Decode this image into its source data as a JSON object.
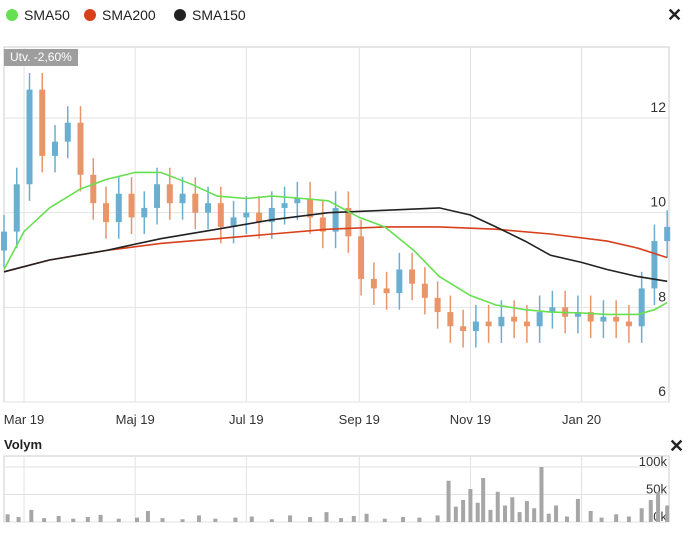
{
  "legend": [
    {
      "label": "SMA50",
      "color": "#66e050"
    },
    {
      "label": "SMA200",
      "color": "#d8401c"
    },
    {
      "label": "SMA150",
      "color": "#222222"
    }
  ],
  "close_symbol": "✕",
  "badge": "Utv. -2,60%",
  "volume_title": "Volym",
  "colors": {
    "up": "#6aaed0",
    "down": "#e8956a",
    "volume": "#a6a6a6",
    "grid": "#e2e2e2"
  },
  "chart_data": [
    {
      "type": "candlestick",
      "ylim": [
        6,
        13.5
      ],
      "yticks": [
        "12",
        "10",
        "8",
        "6"
      ],
      "ytick_values": [
        12,
        10,
        8,
        6
      ],
      "xlim": [
        "2019-02-18",
        "2020-02-18"
      ],
      "xticks": [
        {
          "label": "Mar 19",
          "date": "2019-03-01"
        },
        {
          "label": "Maj 19",
          "date": "2019-05-01"
        },
        {
          "label": "Jul 19",
          "date": "2019-07-01"
        },
        {
          "label": "Sep 19",
          "date": "2019-09-01"
        },
        {
          "label": "Nov 19",
          "date": "2019-11-01"
        },
        {
          "label": "Jan 20",
          "date": "2020-01-01"
        }
      ],
      "close": [
        [
          "2019-02-18",
          9.6
        ],
        [
          "2019-02-25",
          10.6
        ],
        [
          "2019-03-04",
          12.6
        ],
        [
          "2019-03-11",
          11.2
        ],
        [
          "2019-03-18",
          11.5
        ],
        [
          "2019-03-25",
          11.9
        ],
        [
          "2019-04-01",
          10.8
        ],
        [
          "2019-04-08",
          10.2
        ],
        [
          "2019-04-15",
          9.8
        ],
        [
          "2019-04-22",
          10.4
        ],
        [
          "2019-04-29",
          9.9
        ],
        [
          "2019-05-06",
          10.1
        ],
        [
          "2019-05-13",
          10.6
        ],
        [
          "2019-05-20",
          10.2
        ],
        [
          "2019-05-27",
          10.4
        ],
        [
          "2019-06-03",
          10.0
        ],
        [
          "2019-06-10",
          10.2
        ],
        [
          "2019-06-17",
          9.7
        ],
        [
          "2019-06-24",
          9.9
        ],
        [
          "2019-07-01",
          10.0
        ],
        [
          "2019-07-08",
          9.8
        ],
        [
          "2019-07-15",
          10.1
        ],
        [
          "2019-07-22",
          10.2
        ],
        [
          "2019-07-29",
          10.3
        ],
        [
          "2019-08-05",
          9.9
        ],
        [
          "2019-08-12",
          9.6
        ],
        [
          "2019-08-19",
          10.1
        ],
        [
          "2019-08-26",
          9.5
        ],
        [
          "2019-09-02",
          8.6
        ],
        [
          "2019-09-09",
          8.4
        ],
        [
          "2019-09-16",
          8.3
        ],
        [
          "2019-09-23",
          8.8
        ],
        [
          "2019-09-30",
          8.5
        ],
        [
          "2019-10-07",
          8.2
        ],
        [
          "2019-10-14",
          7.9
        ],
        [
          "2019-10-21",
          7.6
        ],
        [
          "2019-10-28",
          7.5
        ],
        [
          "2019-11-04",
          7.7
        ],
        [
          "2019-11-11",
          7.6
        ],
        [
          "2019-11-18",
          7.8
        ],
        [
          "2019-11-25",
          7.7
        ],
        [
          "2019-12-02",
          7.6
        ],
        [
          "2019-12-09",
          7.9
        ],
        [
          "2019-12-16",
          8.0
        ],
        [
          "2019-12-23",
          7.8
        ],
        [
          "2019-12-30",
          7.9
        ],
        [
          "2020-01-06",
          7.7
        ],
        [
          "2020-01-13",
          7.8
        ],
        [
          "2020-01-20",
          7.7
        ],
        [
          "2020-01-27",
          7.6
        ],
        [
          "2020-02-03",
          8.4
        ],
        [
          "2020-02-10",
          9.4
        ],
        [
          "2020-02-17",
          9.7
        ]
      ],
      "sma50": [
        [
          "2019-02-18",
          8.8
        ],
        [
          "2019-03-01",
          9.6
        ],
        [
          "2019-03-15",
          10.1
        ],
        [
          "2019-04-01",
          10.5
        ],
        [
          "2019-04-15",
          10.7
        ],
        [
          "2019-05-01",
          10.85
        ],
        [
          "2019-05-15",
          10.85
        ],
        [
          "2019-06-01",
          10.6
        ],
        [
          "2019-06-15",
          10.35
        ],
        [
          "2019-07-01",
          10.3
        ],
        [
          "2019-07-15",
          10.35
        ],
        [
          "2019-08-01",
          10.3
        ],
        [
          "2019-08-15",
          10.25
        ],
        [
          "2019-09-01",
          9.9
        ],
        [
          "2019-09-15",
          9.7
        ],
        [
          "2019-10-01",
          9.2
        ],
        [
          "2019-10-15",
          8.65
        ],
        [
          "2019-11-01",
          8.25
        ],
        [
          "2019-11-15",
          8.05
        ],
        [
          "2019-12-01",
          7.95
        ],
        [
          "2019-12-15",
          7.9
        ],
        [
          "2020-01-01",
          7.88
        ],
        [
          "2020-01-15",
          7.85
        ],
        [
          "2020-02-01",
          7.85
        ],
        [
          "2020-02-10",
          7.95
        ],
        [
          "2020-02-17",
          8.1
        ]
      ],
      "sma200": [
        [
          "2019-02-18",
          8.75
        ],
        [
          "2019-03-15",
          9.0
        ],
        [
          "2019-04-15",
          9.2
        ],
        [
          "2019-05-15",
          9.35
        ],
        [
          "2019-06-15",
          9.45
        ],
        [
          "2019-07-15",
          9.55
        ],
        [
          "2019-08-15",
          9.65
        ],
        [
          "2019-09-15",
          9.7
        ],
        [
          "2019-10-15",
          9.7
        ],
        [
          "2019-11-15",
          9.65
        ],
        [
          "2019-12-15",
          9.55
        ],
        [
          "2020-01-15",
          9.4
        ],
        [
          "2020-02-01",
          9.25
        ],
        [
          "2020-02-17",
          9.05
        ]
      ],
      "sma150": [
        [
          "2019-02-18",
          8.75
        ],
        [
          "2019-03-15",
          9.0
        ],
        [
          "2019-04-15",
          9.2
        ],
        [
          "2019-05-15",
          9.45
        ],
        [
          "2019-06-15",
          9.65
        ],
        [
          "2019-07-15",
          9.85
        ],
        [
          "2019-08-15",
          10.0
        ],
        [
          "2019-09-15",
          10.05
        ],
        [
          "2019-10-15",
          10.1
        ],
        [
          "2019-11-01",
          9.95
        ],
        [
          "2019-11-15",
          9.7
        ],
        [
          "2019-12-01",
          9.4
        ],
        [
          "2019-12-15",
          9.1
        ],
        [
          "2020-01-01",
          8.95
        ],
        [
          "2020-01-15",
          8.8
        ],
        [
          "2020-02-01",
          8.65
        ],
        [
          "2020-02-17",
          8.55
        ]
      ]
    },
    {
      "type": "bar",
      "title": "Volym",
      "ylim": [
        0,
        120000
      ],
      "yticks": [
        "100k",
        "50k",
        "0k"
      ],
      "ytick_values": [
        100000,
        50000,
        0
      ],
      "values": [
        [
          "2019-02-20",
          14000
        ],
        [
          "2019-02-26",
          9000
        ],
        [
          "2019-03-05",
          22000
        ],
        [
          "2019-03-12",
          7000
        ],
        [
          "2019-03-20",
          11000
        ],
        [
          "2019-03-28",
          6000
        ],
        [
          "2019-04-05",
          9000
        ],
        [
          "2019-04-12",
          13000
        ],
        [
          "2019-04-22",
          6000
        ],
        [
          "2019-05-02",
          8000
        ],
        [
          "2019-05-08",
          20000
        ],
        [
          "2019-05-16",
          7000
        ],
        [
          "2019-05-27",
          5000
        ],
        [
          "2019-06-05",
          12000
        ],
        [
          "2019-06-14",
          6000
        ],
        [
          "2019-06-25",
          8000
        ],
        [
          "2019-07-04",
          10000
        ],
        [
          "2019-07-15",
          5000
        ],
        [
          "2019-07-25",
          12000
        ],
        [
          "2019-08-05",
          9000
        ],
        [
          "2019-08-14",
          18000
        ],
        [
          "2019-08-22",
          7000
        ],
        [
          "2019-08-29",
          11000
        ],
        [
          "2019-09-05",
          15000
        ],
        [
          "2019-09-15",
          6000
        ],
        [
          "2019-09-25",
          9000
        ],
        [
          "2019-10-04",
          8000
        ],
        [
          "2019-10-14",
          12000
        ],
        [
          "2019-10-20",
          75000
        ],
        [
          "2019-10-24",
          28000
        ],
        [
          "2019-10-28",
          40000
        ],
        [
          "2019-11-01",
          60000
        ],
        [
          "2019-11-05",
          35000
        ],
        [
          "2019-11-08",
          80000
        ],
        [
          "2019-11-12",
          22000
        ],
        [
          "2019-11-16",
          55000
        ],
        [
          "2019-11-20",
          30000
        ],
        [
          "2019-11-24",
          45000
        ],
        [
          "2019-11-28",
          18000
        ],
        [
          "2019-12-02",
          38000
        ],
        [
          "2019-12-06",
          25000
        ],
        [
          "2019-12-10",
          100000
        ],
        [
          "2019-12-14",
          15000
        ],
        [
          "2019-12-18",
          30000
        ],
        [
          "2019-12-24",
          10000
        ],
        [
          "2019-12-30",
          42000
        ],
        [
          "2020-01-06",
          20000
        ],
        [
          "2020-01-12",
          8000
        ],
        [
          "2020-01-20",
          14000
        ],
        [
          "2020-01-27",
          10000
        ],
        [
          "2020-02-03",
          25000
        ],
        [
          "2020-02-08",
          40000
        ],
        [
          "2020-02-12",
          55000
        ],
        [
          "2020-02-17",
          30000
        ]
      ]
    }
  ]
}
